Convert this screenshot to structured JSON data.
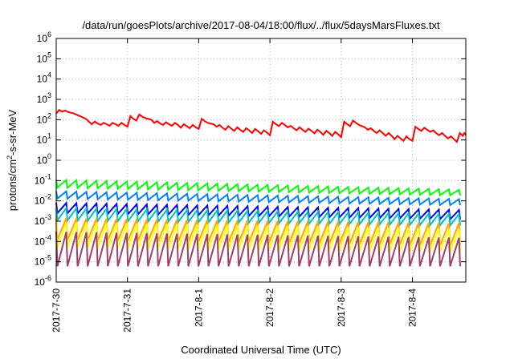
{
  "chart_data": {
    "type": "line",
    "title": "/data/run/goesPlots/archive/2017-08-04/18:00/flux/../flux/5daysMarsFluxes.txt",
    "xlabel": "Coordinated Universal Time (UTC)",
    "ylabel": {
      "base": "protons/cm",
      "sup": "2",
      "rest": "-s-sr-MeV"
    },
    "yscale": "log",
    "ylim_exp": [
      -6,
      6
    ],
    "yticks": [
      {
        "base": "10",
        "exp": "6"
      },
      {
        "base": "10",
        "exp": "5"
      },
      {
        "base": "10",
        "exp": "4"
      },
      {
        "base": "10",
        "exp": "3"
      },
      {
        "base": "10",
        "exp": "2"
      },
      {
        "base": "10",
        "exp": "1"
      },
      {
        "base": "10",
        "exp": "0"
      },
      {
        "base": "10",
        "exp": "-1"
      },
      {
        "base": "10",
        "exp": "-2"
      },
      {
        "base": "10",
        "exp": "-3"
      },
      {
        "base": "10",
        "exp": "-4"
      },
      {
        "base": "10",
        "exp": "-5"
      },
      {
        "base": "10",
        "exp": "-6"
      }
    ],
    "xlim": [
      "2017-07-30T00:00",
      "2017-08-04T18:00"
    ],
    "xticks": [
      "2017-7-30",
      "2017-7-31",
      "2017-8-1",
      "2017-8-2",
      "2017-8-3",
      "2017-8-4"
    ],
    "grid": true,
    "series": [
      {
        "color": "#ff0000",
        "points": [
          [
            "2017-07-30T00:00",
            200
          ],
          [
            "2017-07-30T01:00",
            300
          ],
          [
            "2017-07-30T02:00",
            250
          ],
          [
            "2017-07-30T03:00",
            280
          ],
          [
            "2017-07-30T04:00",
            240
          ],
          [
            "2017-07-30T06:00",
            200
          ],
          [
            "2017-07-30T08:00",
            150
          ],
          [
            "2017-07-30T10:00",
            110
          ],
          [
            "2017-07-30T11:00",
            80
          ],
          [
            "2017-07-30T12:00",
            60
          ],
          [
            "2017-07-30T13:00",
            80
          ],
          [
            "2017-07-30T14:00",
            65
          ],
          [
            "2017-07-30T15:00",
            55
          ],
          [
            "2017-07-30T16:00",
            70
          ],
          [
            "2017-07-30T17:00",
            60
          ],
          [
            "2017-07-30T18:00",
            50
          ],
          [
            "2017-07-30T19:00",
            70
          ],
          [
            "2017-07-30T20:00",
            60
          ],
          [
            "2017-07-30T21:00",
            50
          ],
          [
            "2017-07-30T22:00",
            70
          ],
          [
            "2017-07-30T23:00",
            55
          ],
          [
            "2017-07-31T00:00",
            45
          ],
          [
            "2017-07-31T01:00",
            150
          ],
          [
            "2017-07-31T02:00",
            110
          ],
          [
            "2017-07-31T03:00",
            90
          ],
          [
            "2017-07-31T04:00",
            180
          ],
          [
            "2017-07-31T05:00",
            140
          ],
          [
            "2017-07-31T06:00",
            120
          ],
          [
            "2017-07-31T08:00",
            100
          ],
          [
            "2017-07-31T09:00",
            70
          ],
          [
            "2017-07-31T10:00",
            85
          ],
          [
            "2017-07-31T11:00",
            65
          ],
          [
            "2017-07-31T12:00",
            55
          ],
          [
            "2017-07-31T13:00",
            75
          ],
          [
            "2017-07-31T14:00",
            60
          ],
          [
            "2017-07-31T15:00",
            50
          ],
          [
            "2017-07-31T16:00",
            70
          ],
          [
            "2017-07-31T17:00",
            55
          ],
          [
            "2017-07-31T18:00",
            40
          ],
          [
            "2017-07-31T19:00",
            60
          ],
          [
            "2017-07-31T20:00",
            48
          ],
          [
            "2017-07-31T21:00",
            38
          ],
          [
            "2017-07-31T22:00",
            55
          ],
          [
            "2017-07-31T23:00",
            42
          ],
          [
            "2017-08-01T00:00",
            35
          ],
          [
            "2017-08-01T01:00",
            110
          ],
          [
            "2017-08-01T02:00",
            85
          ],
          [
            "2017-08-01T03:00",
            70
          ],
          [
            "2017-08-01T05:00",
            60
          ],
          [
            "2017-08-01T06:00",
            45
          ],
          [
            "2017-08-01T07:00",
            55
          ],
          [
            "2017-08-01T08:00",
            40
          ],
          [
            "2017-08-01T09:00",
            32
          ],
          [
            "2017-08-01T10:00",
            48
          ],
          [
            "2017-08-01T11:00",
            36
          ],
          [
            "2017-08-01T12:00",
            28
          ],
          [
            "2017-08-01T13:00",
            42
          ],
          [
            "2017-08-01T14:00",
            32
          ],
          [
            "2017-08-01T15:00",
            25
          ],
          [
            "2017-08-01T16:00",
            38
          ],
          [
            "2017-08-01T17:00",
            30
          ],
          [
            "2017-08-01T18:00",
            22
          ],
          [
            "2017-08-01T19:00",
            35
          ],
          [
            "2017-08-01T20:00",
            27
          ],
          [
            "2017-08-01T21:00",
            20
          ],
          [
            "2017-08-01T22:00",
            30
          ],
          [
            "2017-08-01T23:00",
            23
          ],
          [
            "2017-08-02T00:00",
            17
          ],
          [
            "2017-08-02T01:00",
            80
          ],
          [
            "2017-08-02T02:00",
            60
          ],
          [
            "2017-08-02T03:00",
            48
          ],
          [
            "2017-08-02T04:00",
            70
          ],
          [
            "2017-08-02T05:00",
            55
          ],
          [
            "2017-08-02T06:00",
            42
          ],
          [
            "2017-08-02T07:00",
            50
          ],
          [
            "2017-08-02T08:00",
            38
          ],
          [
            "2017-08-02T09:00",
            30
          ],
          [
            "2017-08-02T10:00",
            42
          ],
          [
            "2017-08-02T11:00",
            32
          ],
          [
            "2017-08-02T12:00",
            25
          ],
          [
            "2017-08-02T13:00",
            36
          ],
          [
            "2017-08-02T14:00",
            28
          ],
          [
            "2017-08-02T15:00",
            21
          ],
          [
            "2017-08-02T16:00",
            32
          ],
          [
            "2017-08-02T17:00",
            25
          ],
          [
            "2017-08-02T18:00",
            18
          ],
          [
            "2017-08-02T19:00",
            28
          ],
          [
            "2017-08-02T20:00",
            22
          ],
          [
            "2017-08-02T21:00",
            16
          ],
          [
            "2017-08-02T22:00",
            25
          ],
          [
            "2017-08-02T23:00",
            19
          ],
          [
            "2017-08-03T00:00",
            14
          ],
          [
            "2017-08-03T01:00",
            80
          ],
          [
            "2017-08-03T02:00",
            60
          ],
          [
            "2017-08-03T03:00",
            48
          ],
          [
            "2017-08-03T04:00",
            90
          ],
          [
            "2017-08-03T05:00",
            70
          ],
          [
            "2017-08-03T06:00",
            55
          ],
          [
            "2017-08-03T08:00",
            42
          ],
          [
            "2017-08-03T09:00",
            32
          ],
          [
            "2017-08-03T10:00",
            38
          ],
          [
            "2017-08-03T11:00",
            28
          ],
          [
            "2017-08-03T12:00",
            22
          ],
          [
            "2017-08-03T13:00",
            30
          ],
          [
            "2017-08-03T14:00",
            22
          ],
          [
            "2017-08-03T15:00",
            16
          ],
          [
            "2017-08-03T16:00",
            22
          ],
          [
            "2017-08-03T17:00",
            16
          ],
          [
            "2017-08-03T18:00",
            11
          ],
          [
            "2017-08-03T19:00",
            16
          ],
          [
            "2017-08-03T20:00",
            12
          ],
          [
            "2017-08-03T21:00",
            9
          ],
          [
            "2017-08-03T22:00",
            15
          ],
          [
            "2017-08-03T23:00",
            11
          ],
          [
            "2017-08-04T00:00",
            9
          ],
          [
            "2017-08-04T01:00",
            45
          ],
          [
            "2017-08-04T02:00",
            35
          ],
          [
            "2017-08-04T03:00",
            28
          ],
          [
            "2017-08-04T04:00",
            40
          ],
          [
            "2017-08-04T05:00",
            32
          ],
          [
            "2017-08-04T06:00",
            25
          ],
          [
            "2017-08-04T07:00",
            30
          ],
          [
            "2017-08-04T08:00",
            22
          ],
          [
            "2017-08-04T09:00",
            17
          ],
          [
            "2017-08-04T10:00",
            22
          ],
          [
            "2017-08-04T11:00",
            16
          ],
          [
            "2017-08-04T12:00",
            12
          ],
          [
            "2017-08-04T13:00",
            15
          ],
          [
            "2017-08-04T14:00",
            11
          ],
          [
            "2017-08-04T15:00",
            8
          ],
          [
            "2017-08-04T16:00",
            22
          ],
          [
            "2017-08-04T17:00",
            16
          ],
          [
            "2017-08-04T17:30",
            22
          ],
          [
            "2017-08-04T18:00",
            18
          ]
        ]
      },
      {
        "color": "#00ff00",
        "high": 0.11,
        "low": 0.045,
        "end_high": 0.035,
        "end_low": 0.018
      },
      {
        "color": "#0080ff",
        "high": 0.03,
        "low": 0.013,
        "end_high": 0.012,
        "end_low": 0.006
      },
      {
        "color": "#0000ff",
        "high": 0.008,
        "low": 0.0025,
        "end_high": 0.0035,
        "end_low": 0.0012
      },
      {
        "color": "#00c0c0",
        "high": 0.0045,
        "low": 0.0011,
        "end_high": 0.0022,
        "end_low": 0.0006
      },
      {
        "color": "#ffa500",
        "high": 0.0014,
        "low": 0.00012,
        "end_high": 0.0008,
        "end_low": 6e-05
      },
      {
        "color": "#ffff00",
        "high": 0.0009,
        "low": 5e-05,
        "end_high": 0.0004,
        "end_low": 3e-05
      },
      {
        "color": "#a0406a",
        "high": 0.0003,
        "low": 6e-06,
        "end_high": 0.00015,
        "end_low": 6e-06
      }
    ]
  }
}
